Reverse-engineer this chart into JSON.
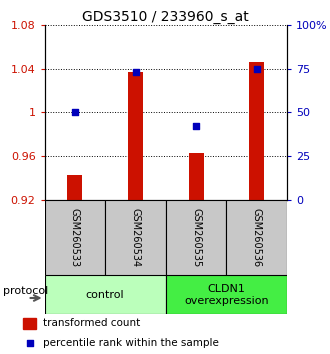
{
  "title": "GDS3510 / 233960_s_at",
  "samples": [
    "GSM260533",
    "GSM260534",
    "GSM260535",
    "GSM260536"
  ],
  "red_values": [
    0.943,
    1.037,
    0.963,
    1.046
  ],
  "blue_values": [
    50,
    73,
    42,
    75
  ],
  "ylim_left": [
    0.92,
    1.08
  ],
  "ylim_right": [
    0,
    100
  ],
  "yticks_left": [
    0.92,
    0.96,
    1.0,
    1.04,
    1.08
  ],
  "yticks_right": [
    0,
    25,
    50,
    75,
    100
  ],
  "ytick_labels_left": [
    "0.92",
    "0.96",
    "1",
    "1.04",
    "1.08"
  ],
  "ytick_labels_right": [
    "0",
    "25",
    "50",
    "75",
    "100%"
  ],
  "groups": [
    {
      "label": "control",
      "samples": [
        0,
        1
      ],
      "color": "#bbffbb"
    },
    {
      "label": "CLDN1\noverexpression",
      "samples": [
        2,
        3
      ],
      "color": "#44ee44"
    }
  ],
  "bar_color": "#cc1100",
  "square_color": "#0000bb",
  "bar_width": 0.25,
  "protocol_label": "protocol",
  "legend_red": "transformed count",
  "legend_blue": "percentile rank within the sample",
  "bg_sample_box": "#c8c8c8",
  "title_fontsize": 10,
  "tick_fontsize": 8,
  "sample_fontsize": 7,
  "group_fontsize": 8,
  "legend_fontsize": 7.5
}
